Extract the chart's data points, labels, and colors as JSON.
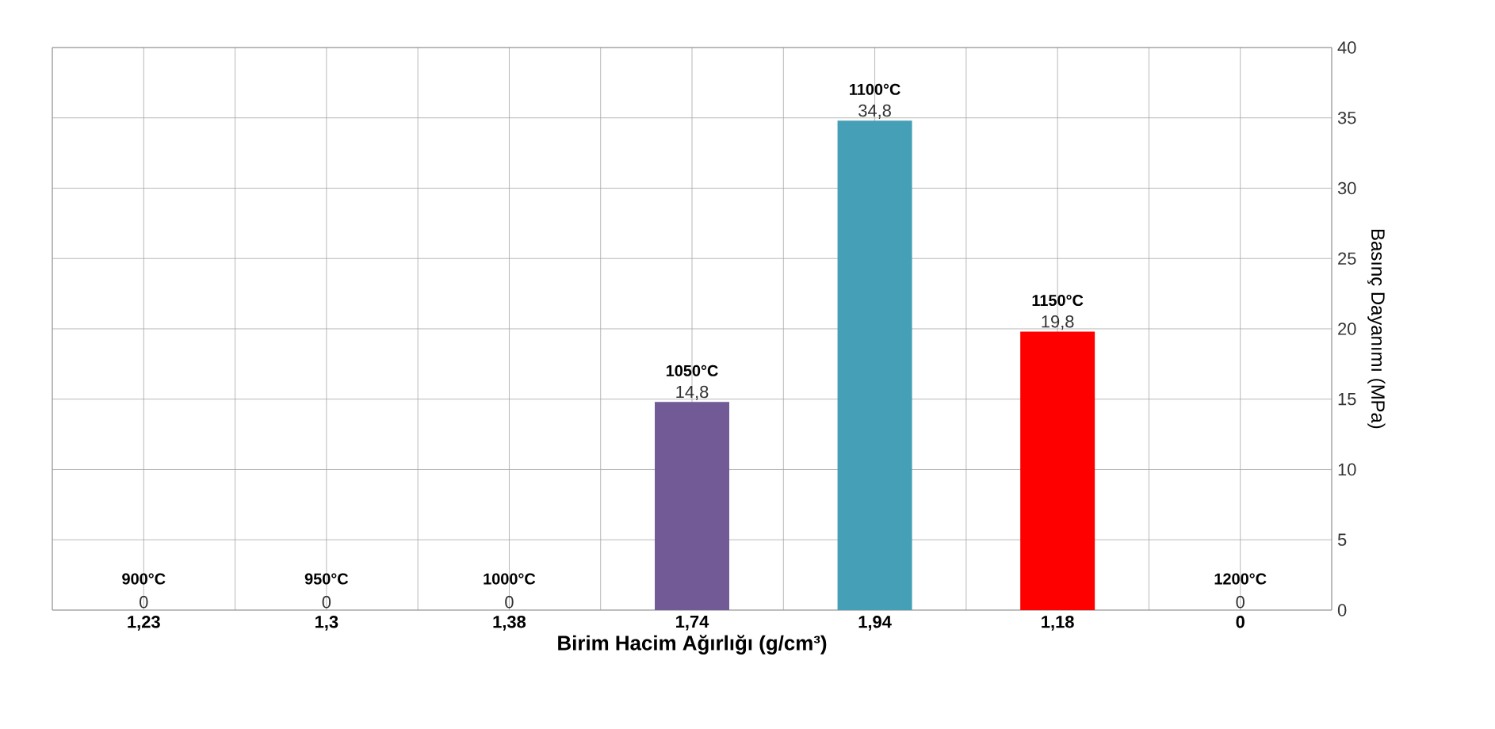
{
  "chart_data": {
    "type": "bar",
    "xlabel": "Birim Hacim Ağırlığı  (g/cm³)",
    "ylabel": "Basınç Dayanımı (MPa)",
    "categories": [
      "1,23",
      "1,3",
      "1,38",
      "1,74",
      "1,94",
      "1,18",
      "0"
    ],
    "values": [
      0,
      0,
      0,
      14.8,
      34.8,
      19.8,
      0
    ],
    "value_labels": [
      "0",
      "0",
      "0",
      "14,8",
      "34,8",
      "19,8",
      "0"
    ],
    "colors": [
      "#4f81bd",
      "#4f81bd",
      "#4f81bd",
      "#725a96",
      "#459fb6",
      "#ff0000",
      "#4f81bd"
    ],
    "ylim": [
      0,
      40
    ],
    "yticks": [
      0,
      5,
      10,
      15,
      20,
      25,
      30,
      35,
      40
    ],
    "grid": true,
    "annotations": [
      {
        "text": "900°C",
        "x": "1,23",
        "y": 0
      },
      {
        "text": "950°C",
        "x": "1,3",
        "y": 0
      },
      {
        "text": "1000°C",
        "x": "1,38",
        "y": 0
      },
      {
        "text": "1050°C",
        "x": "1,74",
        "y": 14.8
      },
      {
        "text": "1100°C",
        "x": "1,94",
        "y": 34.8
      },
      {
        "text": "1150°C",
        "x": "1,18",
        "y": 19.8
      },
      {
        "text": "1200°C",
        "x": "0",
        "y": 0
      }
    ]
  }
}
